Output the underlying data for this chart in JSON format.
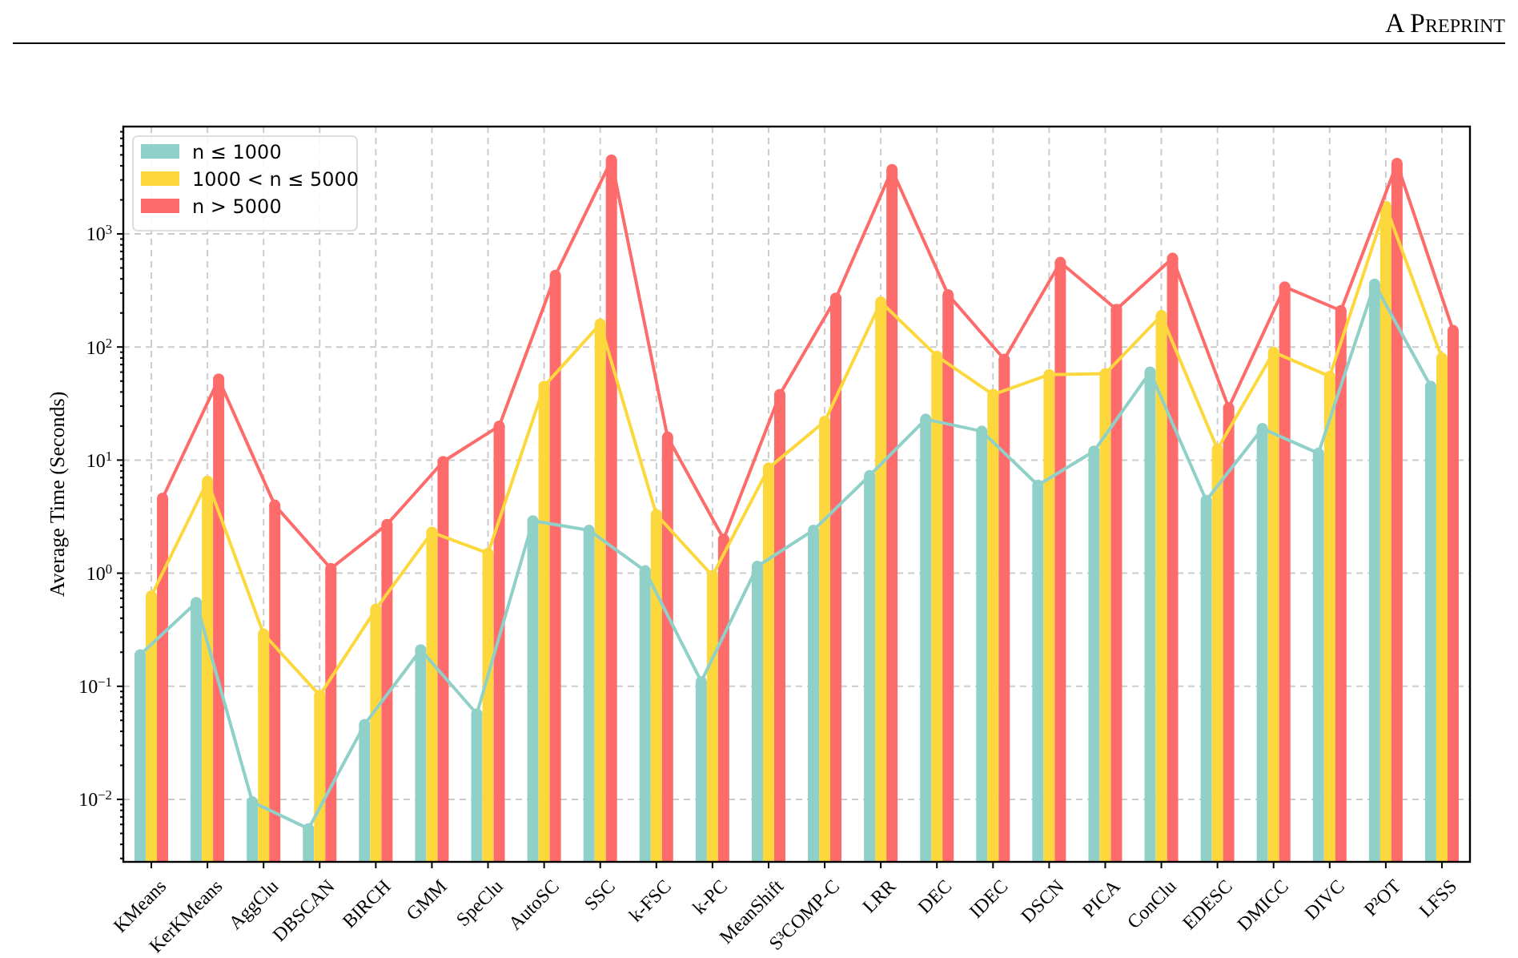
{
  "chart_data": {
    "type": "bar",
    "ylabel": "Average Time (Seconds)",
    "annotations": [
      "A Preprint"
    ],
    "categories": [
      "KMeans",
      "KerKMeans",
      "AggClu",
      "DBSCAN",
      "BIRCH",
      "GMM",
      "SpeClu",
      "AutoSC",
      "SSC",
      "k-FSC",
      "k-PC",
      "MeanShift",
      "S³COMP-C",
      "LRR",
      "DEC",
      "IDEC",
      "DSCN",
      "PICA",
      "ConClu",
      "EDESC",
      "DMICC",
      "DIVC",
      "P²OT",
      "LFSS"
    ],
    "series": [
      {
        "name": "n ≤ 1000",
        "color": "#8fd0c8",
        "values": [
          0.19,
          0.55,
          0.0095,
          0.0055,
          0.046,
          0.21,
          0.057,
          2.9,
          2.4,
          1.05,
          0.11,
          1.15,
          2.4,
          7.3,
          23,
          18,
          6.0,
          12,
          60,
          4.4,
          19,
          11.5,
          360,
          45
        ]
      },
      {
        "name": "1000 < n ≤ 5000",
        "color": "#fdd83d",
        "values": [
          0.63,
          6.5,
          0.29,
          0.083,
          0.48,
          2.3,
          1.5,
          45,
          160,
          3.3,
          0.95,
          8.5,
          22,
          250,
          83,
          38,
          57,
          58,
          190,
          12.5,
          90,
          55,
          1750,
          80
        ]
      },
      {
        "name": "n > 5000",
        "color": "#fe6b6b",
        "values": [
          4.6,
          52,
          4.0,
          1.1,
          2.7,
          9.7,
          20,
          430,
          4500,
          16,
          2.0,
          38,
          270,
          3700,
          290,
          78,
          560,
          215,
          610,
          29,
          340,
          210,
          4200,
          140
        ]
      },
      {
        "type": "line",
        "marker": "circle",
        "color": "#8fd0c8",
        "values": [
          0.19,
          0.55,
          0.0095,
          0.0055,
          0.046,
          0.21,
          0.057,
          2.9,
          2.4,
          1.05,
          0.11,
          1.15,
          2.4,
          7.3,
          23,
          18,
          6.0,
          12,
          60,
          4.4,
          19,
          11.5,
          360,
          45
        ]
      },
      {
        "type": "line",
        "marker": "circle",
        "color": "#fdd83d",
        "values": [
          0.63,
          6.5,
          0.29,
          0.083,
          0.48,
          2.3,
          1.5,
          45,
          160,
          3.3,
          0.95,
          8.5,
          22,
          250,
          83,
          38,
          57,
          58,
          190,
          12.5,
          90,
          55,
          1750,
          80
        ]
      },
      {
        "type": "line",
        "marker": "circle",
        "color": "#fe6b6b",
        "values": [
          4.6,
          52,
          4.0,
          1.1,
          2.7,
          9.7,
          20,
          430,
          4500,
          16,
          2.0,
          38,
          270,
          3700,
          290,
          78,
          560,
          215,
          610,
          29,
          340,
          210,
          4200,
          140
        ]
      }
    ],
    "log": true,
    "ylim": [
      0.0028,
      8900
    ],
    "yticks": [
      {
        "value": 0.01,
        "label": "10$^{−2}$"
      },
      {
        "value": 0.1,
        "label": "10$^{−1}$"
      },
      {
        "value": 1,
        "label": "10$^{0}$"
      },
      {
        "value": 10,
        "label": "10$^{1}$"
      },
      {
        "value": 100,
        "label": "10$^{2}$"
      },
      {
        "value": 1000,
        "label": "10$^{3}$"
      },
      {
        "value": 0.003,
        "label": null
      },
      {
        "value": 0.004,
        "label": null
      },
      {
        "value": 0.005,
        "label": null
      },
      {
        "value": 0.006,
        "label": null
      },
      {
        "value": 0.007,
        "label": null
      },
      {
        "value": 0.008,
        "label": null
      },
      {
        "value": 0.009,
        "label": null
      },
      {
        "value": 0.02,
        "label": null
      },
      {
        "value": 0.03,
        "label": null
      },
      {
        "value": 0.04,
        "label": null
      },
      {
        "value": 0.05,
        "label": null
      },
      {
        "value": 0.06,
        "label": null
      },
      {
        "value": 0.07,
        "label": null
      },
      {
        "value": 0.08,
        "label": null
      },
      {
        "value": 0.09,
        "label": null
      },
      {
        "value": 0.2,
        "label": null
      },
      {
        "value": 0.3,
        "label": null
      },
      {
        "value": 0.4,
        "label": null
      },
      {
        "value": 0.5,
        "label": null
      },
      {
        "value": 0.6,
        "label": null
      },
      {
        "value": 0.7,
        "label": null
      },
      {
        "value": 0.8,
        "label": null
      },
      {
        "value": 0.9,
        "label": null
      },
      {
        "value": 2,
        "label": null
      },
      {
        "value": 3,
        "label": null
      },
      {
        "value": 4,
        "label": null
      },
      {
        "value": 5,
        "label": null
      },
      {
        "value": 6,
        "label": null
      },
      {
        "value": 7,
        "label": null
      },
      {
        "value": 8,
        "label": null
      },
      {
        "value": 9,
        "label": null
      },
      {
        "value": 20,
        "label": null
      },
      {
        "value": 30,
        "label": null
      },
      {
        "value": 40,
        "label": null
      },
      {
        "value": 50,
        "label": null
      },
      {
        "value": 60,
        "label": null
      },
      {
        "value": 70,
        "label": null
      },
      {
        "value": 80,
        "label": null
      },
      {
        "value": 90,
        "label": null
      },
      {
        "value": 200,
        "label": null
      },
      {
        "value": 300,
        "label": null
      },
      {
        "value": 400,
        "label": null
      },
      {
        "value": 500,
        "label": null
      },
      {
        "value": 600,
        "label": null
      },
      {
        "value": 700,
        "label": null
      },
      {
        "value": 800,
        "label": null
      },
      {
        "value": 900,
        "label": null
      },
      {
        "value": 2000,
        "label": null
      },
      {
        "value": 3000,
        "label": null
      },
      {
        "value": 4000,
        "label": null
      },
      {
        "value": 5000,
        "label": null
      },
      {
        "value": 6000,
        "label": null
      },
      {
        "value": 7000,
        "label": null
      },
      {
        "value": 8000,
        "label": null
      }
    ],
    "grid": true,
    "line_style": "solid",
    "legend": "top left"
  }
}
